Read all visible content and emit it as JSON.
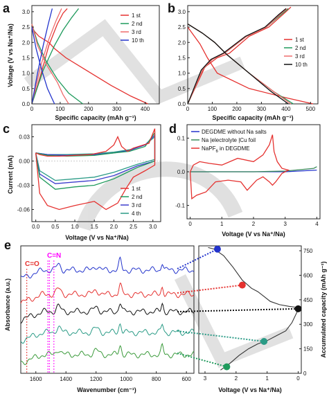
{
  "colors": {
    "red": "#e5312f",
    "green": "#1f9a5c",
    "redlight": "#ef6a6a",
    "blue": "#2233cc",
    "purple": "#6a1ee0",
    "black": "#111111",
    "teal": "#2a9b86",
    "orange": "#e0613a",
    "darkgreen": "#3a9a3a",
    "magenta": "#ff00ff",
    "blueline": "#3c3ccc",
    "graygreen": "#3a8a5a",
    "watermark": "#c8c8c8"
  },
  "panels": {
    "a": {
      "label": "a",
      "xlabel": "Specific capacity (mAh g⁻¹)",
      "ylabel": "Voltage (V vs Na⁺/Na)",
      "xticks": [
        "0",
        "100",
        "200",
        "300",
        "400"
      ],
      "yticks": [
        "0.0",
        "0.5",
        "1.0",
        "1.5",
        "2.0",
        "2.5",
        "3.0"
      ],
      "legend": [
        "1 st",
        "2 nd",
        "3 rd",
        "10 th"
      ]
    },
    "b": {
      "label": "b",
      "xlabel": "Specific capacity (mAh g⁻¹)",
      "xticks": [
        "0",
        "100",
        "200",
        "300",
        "400",
        "500"
      ],
      "legend": [
        "1 st",
        "2 nd",
        "3 rd",
        "10 th"
      ]
    },
    "c": {
      "label": "c",
      "xlabel": "Voltage (V vs Na⁺/Na)",
      "ylabel": "Current (mA)",
      "xticks": [
        "0.0",
        "0.5",
        "1.0",
        "1.5",
        "2.0",
        "2.5",
        "3.0"
      ],
      "yticks": [
        "0.03",
        "0.00",
        "-0.03",
        "-0.06"
      ],
      "legend": [
        "1 st",
        "2 nd",
        "3 rd",
        "4 th"
      ]
    },
    "d": {
      "label": "d",
      "xlabel": "Voltage (V vs Na⁺/Na)",
      "xticks": [
        "0",
        "1",
        "2",
        "3",
        "4"
      ],
      "yticks": [
        "0.1",
        "0.0",
        "-0.1"
      ],
      "legend": [
        "DEGDME without Na salts",
        "Na |electrolyte |Cu foil",
        "NaPF",
        "6",
        " in DEGDME"
      ]
    },
    "e": {
      "label": "e",
      "xlabel": "Wavenumber (cm⁻¹)",
      "ylabel": "Absorbance (a.u.)",
      "xticks": [
        "1600",
        "1400",
        "1200",
        "1000",
        "800",
        "600"
      ],
      "ann1": "C=O",
      "ann2": "C=N"
    },
    "e2": {
      "xlabel": "Voltage (V vs Na⁺/Na)",
      "ylabel": "Accumulated capacity (mAh g⁻¹)",
      "xticks": [
        "3",
        "2",
        "1",
        "0"
      ],
      "yticks": [
        "750",
        "600",
        "450",
        "300",
        "150",
        "0"
      ]
    }
  },
  "chart_data": [
    {
      "type": "line",
      "panel": "a",
      "xlim": [
        0,
        450
      ],
      "ylim": [
        0,
        3.2
      ],
      "series": [
        {
          "name": "1 st",
          "discharge_x": [
            0,
            10,
            25,
            60,
            80,
            120,
            200,
            280,
            350,
            410
          ],
          "discharge_y": [
            2.5,
            2.35,
            2.2,
            2.0,
            1.8,
            1.5,
            1.05,
            0.6,
            0.25,
            0.0
          ],
          "charge_x": [
            0,
            30,
            60,
            90,
            110,
            125
          ],
          "charge_y": [
            0.0,
            0.9,
            1.9,
            2.6,
            2.95,
            3.1
          ]
        },
        {
          "name": "2 nd",
          "discharge_x": [
            0,
            20,
            50,
            90,
            130,
            180
          ],
          "discharge_y": [
            2.6,
            2.0,
            1.4,
            0.8,
            0.35,
            0.0
          ],
          "charge_x": [
            0,
            40,
            80,
            110,
            140,
            165
          ],
          "charge_y": [
            0.0,
            1.1,
            1.9,
            2.4,
            2.8,
            3.1
          ]
        },
        {
          "name": "3 rd",
          "discharge_x": [
            0,
            20,
            50,
            90,
            110,
            130
          ],
          "discharge_y": [
            2.6,
            1.9,
            1.3,
            0.7,
            0.3,
            0.0
          ],
          "charge_x": [
            0,
            30,
            60,
            85,
            105
          ],
          "charge_y": [
            0.0,
            1.2,
            2.1,
            2.7,
            3.1
          ]
        },
        {
          "name": "10 th",
          "discharge_x": [
            0,
            15,
            35,
            55,
            70,
            80
          ],
          "discharge_y": [
            2.5,
            1.8,
            1.1,
            0.5,
            0.2,
            0.0
          ],
          "charge_x": [
            0,
            20,
            40,
            58,
            72
          ],
          "charge_y": [
            0.0,
            1.0,
            1.9,
            2.6,
            3.1
          ]
        }
      ]
    },
    {
      "type": "line",
      "panel": "b",
      "xlim": [
        0,
        530
      ],
      "ylim": [
        0,
        3.2
      ],
      "series": [
        {
          "name": "1 st",
          "discharge_x": [
            0,
            50,
            80,
            120,
            250,
            400,
            510
          ],
          "discharge_y": [
            2.5,
            1.95,
            1.5,
            1.0,
            0.5,
            0.2,
            0.0
          ],
          "charge_x": [
            0,
            70,
            120,
            170,
            250,
            330,
            400,
            420
          ],
          "charge_y": [
            0.0,
            1.2,
            1.5,
            1.65,
            2.2,
            2.5,
            3.0,
            3.15
          ]
        },
        {
          "name": "2 nd",
          "discharge_x": [
            0,
            60,
            110,
            160,
            250,
            350,
            430
          ],
          "discharge_y": [
            2.6,
            2.3,
            2.0,
            1.6,
            1.0,
            0.4,
            0.0
          ],
          "charge_x": [
            0,
            60,
            100,
            150,
            240,
            320,
            380,
            410
          ],
          "charge_y": [
            0.0,
            1.1,
            1.45,
            1.65,
            2.2,
            2.5,
            2.9,
            3.1
          ]
        },
        {
          "name": "3 rd",
          "discharge_x": [
            0,
            60,
            110,
            160,
            250,
            350,
            420
          ],
          "discharge_y": [
            2.6,
            2.3,
            2.0,
            1.6,
            1.0,
            0.4,
            0.0
          ],
          "charge_x": [
            0,
            60,
            100,
            150,
            240,
            320,
            375,
            405
          ],
          "charge_y": [
            0.0,
            1.1,
            1.45,
            1.65,
            2.2,
            2.5,
            2.9,
            3.1
          ]
        },
        {
          "name": "10 th",
          "discharge_x": [
            0,
            60,
            110,
            160,
            250,
            340,
            410
          ],
          "discharge_y": [
            2.6,
            2.3,
            2.0,
            1.6,
            1.0,
            0.4,
            0.0
          ],
          "charge_x": [
            0,
            55,
            95,
            145,
            235,
            315,
            370,
            400
          ],
          "charge_y": [
            0.0,
            1.1,
            1.45,
            1.65,
            2.2,
            2.5,
            2.9,
            3.1
          ]
        }
      ]
    },
    {
      "type": "line",
      "panel": "c",
      "xlim": [
        -0.1,
        3.2
      ],
      "ylim": [
        -0.075,
        0.045
      ],
      "series": [
        {
          "name": "1 st",
          "x": [
            0,
            0.1,
            0.3,
            0.6,
            1.0,
            1.4,
            1.8,
            2.0,
            2.1,
            2.2,
            2.35,
            2.5,
            2.9,
            3.05,
            3.05,
            2.8,
            2.5,
            2.3,
            2.1,
            1.8,
            1.5,
            1.0,
            0.6,
            0.3,
            0.1,
            0
          ],
          "y": [
            0.01,
            0.008,
            0.006,
            0.006,
            0.007,
            0.008,
            0.012,
            0.02,
            0.03,
            0.018,
            0.012,
            0.016,
            0.022,
            0.04,
            -0.005,
            -0.012,
            -0.02,
            -0.035,
            -0.052,
            -0.06,
            -0.05,
            -0.055,
            -0.06,
            -0.055,
            -0.04,
            0.01
          ]
        },
        {
          "name": "2 nd",
          "x": [
            0,
            0.3,
            0.8,
            1.5,
            2.0,
            2.4,
            2.8,
            3.05,
            3.05,
            2.6,
            2.3,
            2.0,
            1.5,
            1.0,
            0.5,
            0.1,
            0
          ],
          "y": [
            0.01,
            0.007,
            0.006,
            0.007,
            0.01,
            0.012,
            0.018,
            0.035,
            0.0,
            -0.008,
            -0.015,
            -0.022,
            -0.03,
            -0.032,
            -0.035,
            -0.02,
            0.01
          ]
        },
        {
          "name": "3 rd",
          "x": [
            0,
            0.3,
            0.8,
            1.5,
            2.0,
            2.4,
            2.8,
            3.05,
            3.05,
            2.6,
            2.3,
            2.0,
            1.5,
            1.0,
            0.5,
            0.1,
            0
          ],
          "y": [
            0.01,
            0.008,
            0.007,
            0.008,
            0.01,
            0.013,
            0.02,
            0.032,
            0.0,
            -0.006,
            -0.012,
            -0.018,
            -0.024,
            -0.026,
            -0.028,
            -0.016,
            0.01
          ]
        },
        {
          "name": "4 th",
          "x": [
            0,
            0.3,
            0.8,
            1.5,
            2.0,
            2.4,
            2.8,
            3.05,
            3.05,
            2.6,
            2.3,
            2.0,
            1.5,
            1.0,
            0.5,
            0.1,
            0
          ],
          "y": [
            0.01,
            0.008,
            0.008,
            0.009,
            0.011,
            0.014,
            0.02,
            0.03,
            0.002,
            -0.004,
            -0.009,
            -0.014,
            -0.02,
            -0.022,
            -0.024,
            -0.012,
            0.01
          ]
        }
      ]
    },
    {
      "type": "line",
      "panel": "d",
      "xlim": [
        -0.1,
        4.1
      ],
      "ylim": [
        -0.14,
        0.14
      ],
      "series": [
        {
          "name": "DEGDME without Na salts",
          "x": [
            0,
            1,
            2,
            3,
            4
          ],
          "y": [
            0,
            0,
            0,
            0,
            0.005
          ]
        },
        {
          "name": "Na |electrolyte |Cu foil",
          "x": [
            0,
            1,
            2,
            3,
            3.9,
            4.0
          ],
          "y": [
            0,
            0,
            0,
            0.002,
            0.01,
            0.015
          ]
        },
        {
          "name": "NaPF6 in DEGDME",
          "x": [
            0,
            0.1,
            0.3,
            0.6,
            1.0,
            1.5,
            2.0,
            2.3,
            2.5,
            2.6,
            2.65,
            2.75,
            2.9,
            3.1,
            2.9,
            2.7,
            2.6,
            2.5,
            2.3,
            2.1,
            1.8,
            1.6,
            1.2,
            0.8,
            0.5,
            0.2,
            0.05,
            0
          ],
          "y": [
            0,
            0.02,
            0.03,
            0.025,
            0.02,
            0.04,
            0.03,
            0.05,
            0.08,
            0.11,
            0.06,
            0.03,
            0.01,
            0.005,
            -0.005,
            -0.03,
            -0.04,
            -0.03,
            -0.015,
            -0.025,
            -0.055,
            -0.03,
            -0.025,
            -0.03,
            -0.06,
            -0.07,
            -0.08,
            0
          ]
        }
      ]
    },
    {
      "type": "line",
      "panel": "e",
      "xlim": [
        1700,
        550
      ],
      "markers_cm": [
        1660,
        1520,
        1510,
        1480
      ],
      "series": [
        {
          "name": "top blue",
          "offset": 5
        },
        {
          "name": "red",
          "offset": 4
        },
        {
          "name": "black",
          "offset": 3
        },
        {
          "name": "teal",
          "offset": 2
        },
        {
          "name": "green",
          "offset": 1
        }
      ]
    },
    {
      "type": "line",
      "panel": "e2",
      "xlim": [
        3.2,
        -0.1
      ],
      "ylim": [
        0,
        780
      ],
      "x": [
        2.9,
        2.7,
        2.4,
        2.1,
        1.8,
        1.5,
        1.3,
        1.1,
        0.9,
        0.6,
        0.3,
        0.1,
        0,
        0.05,
        0.2,
        0.4,
        0.7,
        1.0,
        1.3,
        1.6,
        1.9,
        2.2,
        2.5
      ],
      "y": [
        770,
        760,
        720,
        650,
        570,
        520,
        500,
        470,
        440,
        420,
        410,
        405,
        390,
        370,
        310,
        260,
        230,
        200,
        180,
        150,
        110,
        60,
        20
      ],
      "markers": [
        {
          "v": 2.6,
          "cap": 760,
          "color": "blue"
        },
        {
          "v": 1.8,
          "cap": 540,
          "color": "red"
        },
        {
          "v": 0.0,
          "cap": 395,
          "color": "black"
        },
        {
          "v": 1.1,
          "cap": 195,
          "color": "teal"
        },
        {
          "v": 2.3,
          "cap": 40,
          "color": "green"
        }
      ]
    }
  ]
}
